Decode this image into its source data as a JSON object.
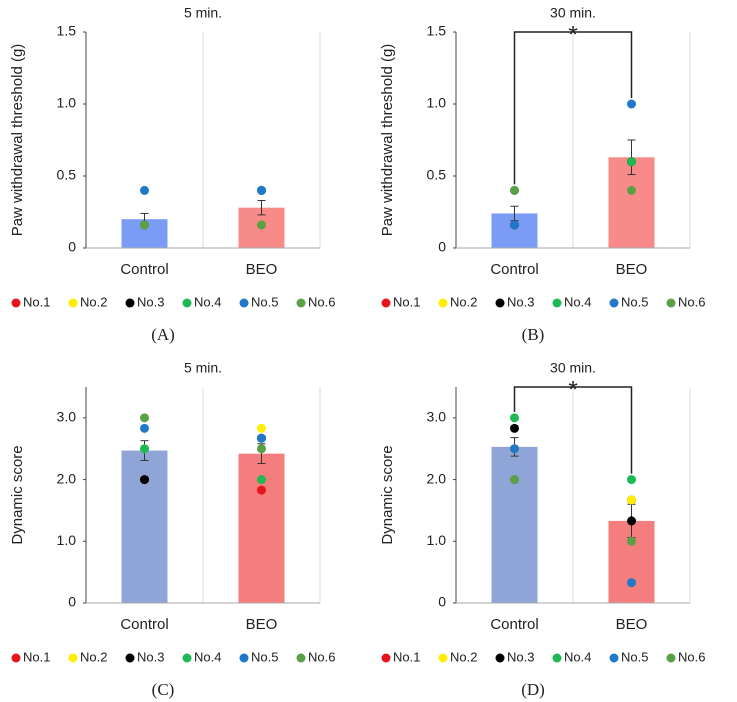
{
  "chart_data": [
    {
      "type": "bar",
      "panel": "(A)",
      "title": "5 min.",
      "ylabel": "Paw withdrawal threshold (g)",
      "categories": [
        "Control",
        "BEO"
      ],
      "values": [
        0.2,
        0.28
      ],
      "errors": [
        0.04,
        0.05
      ],
      "colors": [
        "#7b9cf4",
        "#f88a8a"
      ],
      "series": [
        {
          "name": "No.1",
          "color": "#e8141c",
          "values": [
            0.16,
            0.16
          ]
        },
        {
          "name": "No.2",
          "color": "#ffee00",
          "values": [
            0.16,
            0.16
          ]
        },
        {
          "name": "No.3",
          "color": "#000000",
          "values": [
            0.16,
            0.4
          ]
        },
        {
          "name": "No.4",
          "color": "#1db954",
          "values": [
            0.16,
            0.4
          ]
        },
        {
          "name": "No.5",
          "color": "#1f78c8",
          "values": [
            0.4,
            0.4
          ]
        },
        {
          "name": "No.6",
          "color": "#5aa046",
          "values": [
            0.16,
            0.16
          ]
        }
      ],
      "ylim": [
        0,
        1.5
      ],
      "yticks": [
        0,
        0.5,
        {
          "value": 1,
          "label": "1.0"
        },
        1.5
      ],
      "category_grid": true
    },
    {
      "type": "bar",
      "panel": "(B)",
      "title": "30 min.",
      "ylabel": "Paw withdrawal threshold (g)",
      "categories": [
        "Control",
        "BEO"
      ],
      "values": [
        0.24,
        0.63
      ],
      "errors": [
        0.05,
        0.12
      ],
      "colors": [
        "#7b9cf4",
        "#f88a8a"
      ],
      "series": [
        {
          "name": "No.1",
          "color": "#e8141c",
          "values": [
            0.16,
            0.6
          ]
        },
        {
          "name": "No.2",
          "color": "#ffee00",
          "values": [
            0.16,
            0.6
          ]
        },
        {
          "name": "No.3",
          "color": "#000000",
          "values": [
            0.16,
            0.6
          ]
        },
        {
          "name": "No.4",
          "color": "#1db954",
          "values": [
            0.4,
            0.6
          ]
        },
        {
          "name": "No.5",
          "color": "#1f78c8",
          "values": [
            0.16,
            1.0
          ]
        },
        {
          "name": "No.6",
          "color": "#5aa046",
          "values": [
            0.4,
            0.4
          ]
        }
      ],
      "annotation": "*",
      "ylim": [
        0,
        1.5
      ],
      "yticks": [
        0,
        0.5,
        {
          "value": 1,
          "label": "1.0"
        },
        1.5
      ],
      "category_grid": true
    },
    {
      "type": "bar",
      "panel": "(C)",
      "title": "5 min.",
      "ylabel": "Dynamic score",
      "categories": [
        "Control",
        "BEO"
      ],
      "values": [
        2.47,
        2.42
      ],
      "errors": [
        0.16,
        0.16
      ],
      "colors": [
        "#8fa5d8",
        "#f47d7d"
      ],
      "series": [
        {
          "name": "No.1",
          "color": "#e8141c",
          "values": [
            2.0,
            1.83
          ]
        },
        {
          "name": "No.2",
          "color": "#ffee00",
          "values": [
            2.5,
            2.83
          ]
        },
        {
          "name": "No.3",
          "color": "#000000",
          "values": [
            2.0,
            2.67
          ]
        },
        {
          "name": "No.4",
          "color": "#1db954",
          "values": [
            2.5,
            2.0
          ]
        },
        {
          "name": "No.5",
          "color": "#1f78c8",
          "values": [
            2.83,
            2.67
          ]
        },
        {
          "name": "No.6",
          "color": "#5aa046",
          "values": [
            3.0,
            2.5
          ]
        }
      ],
      "ylim": [
        0,
        3.5
      ],
      "yticks": [
        0,
        {
          "value": 1,
          "label": "1.0"
        },
        {
          "value": 2,
          "label": "2.0"
        },
        {
          "value": 3,
          "label": "3.0"
        }
      ],
      "category_grid": true
    },
    {
      "type": "bar",
      "panel": "(D)",
      "title": "30 min.",
      "ylabel": "Dynamic score",
      "categories": [
        "Control",
        "BEO"
      ],
      "values": [
        2.53,
        1.33
      ],
      "errors": [
        0.15,
        0.27
      ],
      "colors": [
        "#8fa5d8",
        "#f47d7d"
      ],
      "series": [
        {
          "name": "No.1",
          "color": "#e8141c",
          "values": [
            2.5,
            1.67
          ]
        },
        {
          "name": "No.2",
          "color": "#ffee00",
          "values": [
            2.5,
            1.67
          ]
        },
        {
          "name": "No.3",
          "color": "#000000",
          "values": [
            2.83,
            1.33
          ]
        },
        {
          "name": "No.4",
          "color": "#1db954",
          "values": [
            3.0,
            2.0
          ]
        },
        {
          "name": "No.5",
          "color": "#1f78c8",
          "values": [
            2.5,
            0.33
          ]
        },
        {
          "name": "No.6",
          "color": "#5aa046",
          "values": [
            2.0,
            1.0
          ]
        }
      ],
      "annotation": "*",
      "ylim": [
        0,
        3.5
      ],
      "yticks": [
        0,
        {
          "value": 1,
          "label": "1.0"
        },
        {
          "value": 2,
          "label": "2.0"
        },
        {
          "value": 3,
          "label": "3.0"
        }
      ],
      "category_grid": true
    }
  ]
}
